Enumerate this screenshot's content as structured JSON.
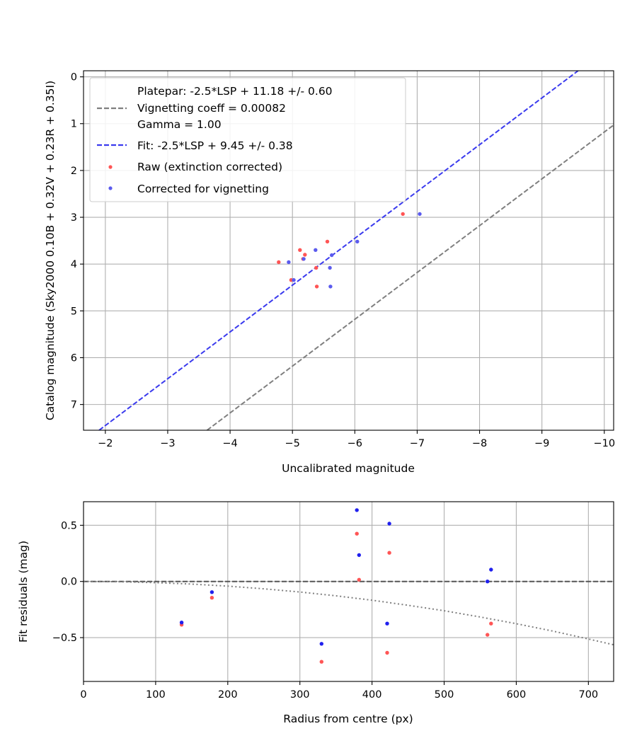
{
  "chart_data": [
    {
      "type": "scatter",
      "xlabel": "Uncalibrated magnitude",
      "ylabel": "Catalog magnitude (Sky2000 0.10B + 0.32V + 0.23R + 0.35I)",
      "xlim": [
        -1.65,
        -10.15
      ],
      "ylim": [
        7.55,
        -0.13
      ],
      "x_inverted": true,
      "y_inverted": true,
      "x_ticks": [
        -2,
        -3,
        -4,
        -5,
        -6,
        -7,
        -8,
        -9,
        -10
      ],
      "x_tick_labels": [
        "−2",
        "−3",
        "−4",
        "−5",
        "−6",
        "−7",
        "−8",
        "−9",
        "−10"
      ],
      "y_ticks": [
        0,
        1,
        2,
        3,
        4,
        5,
        6,
        7
      ],
      "y_tick_labels": [
        "0",
        "1",
        "2",
        "3",
        "4",
        "5",
        "6",
        "7"
      ],
      "grid": true,
      "legend_position": "upper-left",
      "series": [
        {
          "name": "Platepar: -2.5*LSP + 11.18 +/- 0.60\nVignetting coeff = 0.00082\nGamma = 1.00",
          "kind": "line",
          "style": "dashed",
          "color": "#7f7f7f",
          "x": [
            -3.63,
            -10.15
          ],
          "y": [
            7.55,
            1.03
          ]
        },
        {
          "name": "Fit: -2.5*LSP + 9.45 +/- 0.38",
          "kind": "line",
          "style": "dashed",
          "color": "#3a3aee",
          "x": [
            -1.9,
            -9.58
          ],
          "y": [
            7.55,
            -0.13
          ]
        },
        {
          "name": "Raw (extinction corrected)",
          "kind": "scatter",
          "color": "#ff5555",
          "x": [
            -4.78,
            -4.98,
            -5.12,
            -5.17,
            -5.2,
            -5.38,
            -5.39,
            -5.56,
            -6.77
          ],
          "y": [
            3.96,
            4.34,
            3.7,
            3.89,
            3.8,
            4.08,
            4.48,
            3.52,
            2.93
          ]
        },
        {
          "name": "Corrected for vignetting",
          "kind": "scatter",
          "color": "#5b5bee",
          "x": [
            -4.94,
            -5.02,
            -5.18,
            -5.37,
            -5.6,
            -5.61,
            -5.63,
            -6.04,
            -7.04
          ],
          "y": [
            3.96,
            4.34,
            3.89,
            3.7,
            4.08,
            4.48,
            3.81,
            3.52,
            2.93
          ]
        }
      ]
    },
    {
      "type": "scatter",
      "xlabel": "Radius from centre (px)",
      "ylabel": "Fit residuals (mag)",
      "xlim": [
        0,
        735
      ],
      "ylim": [
        -0.89,
        0.71
      ],
      "x_ticks": [
        0,
        100,
        200,
        300,
        400,
        500,
        600,
        700
      ],
      "x_tick_labels": [
        "0",
        "100",
        "200",
        "300",
        "400",
        "500",
        "600",
        "700"
      ],
      "y_ticks": [
        0.5,
        0.0,
        -0.5
      ],
      "y_tick_labels": [
        "0.5",
        "0.0",
        "−0.5"
      ],
      "grid": true,
      "series": [
        {
          "kind": "line",
          "style": "dashed",
          "color": "#555555",
          "x": [
            0,
            735
          ],
          "y": [
            0,
            0
          ]
        },
        {
          "kind": "curve",
          "style": "dotted",
          "color": "#7f7f7f",
          "x": [
            0,
            50,
            100,
            150,
            200,
            250,
            300,
            350,
            400,
            450,
            500,
            550,
            600,
            650,
            700,
            735
          ],
          "y": [
            0,
            -0.0026,
            -0.0104,
            -0.0235,
            -0.0418,
            -0.0653,
            -0.094,
            -0.128,
            -0.167,
            -0.212,
            -0.261,
            -0.316,
            -0.376,
            -0.441,
            -0.512,
            -0.564
          ]
        },
        {
          "kind": "scatter",
          "color": "#ff5555",
          "x": [
            136,
            178,
            330,
            379,
            382,
            421,
            424,
            560,
            565
          ],
          "y": [
            -0.385,
            -0.145,
            -0.715,
            0.425,
            0.015,
            -0.635,
            0.255,
            -0.475,
            -0.375
          ]
        },
        {
          "kind": "scatter",
          "color": "#2020ee",
          "x": [
            136,
            178,
            330,
            379,
            382,
            421,
            424,
            560,
            565
          ],
          "y": [
            -0.365,
            -0.095,
            -0.555,
            0.635,
            0.235,
            -0.375,
            0.515,
            0.0,
            0.105
          ]
        }
      ]
    }
  ]
}
